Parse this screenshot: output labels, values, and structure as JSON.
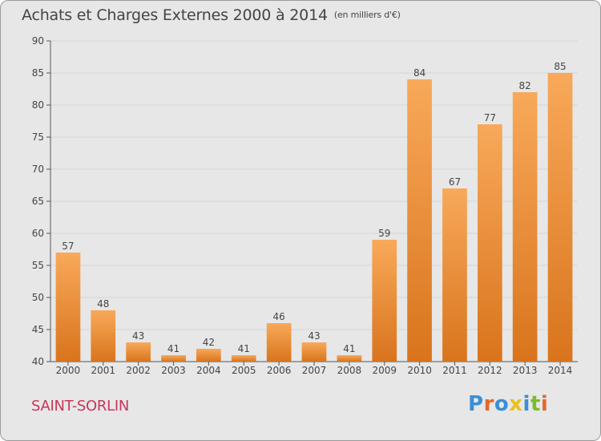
{
  "header": {
    "title": "Achats et Charges Externes 2000 à 2014",
    "subtitle": "(en milliers d'€)"
  },
  "footer": {
    "commune": "SAINT-SORLIN",
    "brand": "Proxiti"
  },
  "colors": {
    "bar_light": "#f8a95a",
    "bar_dark": "#d9741c",
    "grid": "#d5d5d5",
    "axis": "#555555",
    "commune": "#c6365a",
    "logo_letters": [
      "#3a8fd6",
      "#e4682a",
      "#3a8fd6",
      "#e8c21a",
      "#3a8fd6",
      "#7cbb2c",
      "#e4682a"
    ]
  },
  "chart_data": {
    "type": "bar",
    "categories": [
      "2000",
      "2001",
      "2002",
      "2003",
      "2004",
      "2005",
      "2006",
      "2007",
      "2008",
      "2009",
      "2010",
      "2011",
      "2012",
      "2013",
      "2014"
    ],
    "values": [
      57,
      48,
      43,
      41,
      42,
      41,
      46,
      43,
      41,
      59,
      84,
      67,
      77,
      82,
      85
    ],
    "ylim": [
      40,
      90
    ],
    "yticks": [
      40,
      45,
      50,
      55,
      60,
      65,
      70,
      75,
      80,
      85,
      90
    ],
    "grid": true,
    "data_labels": true
  }
}
